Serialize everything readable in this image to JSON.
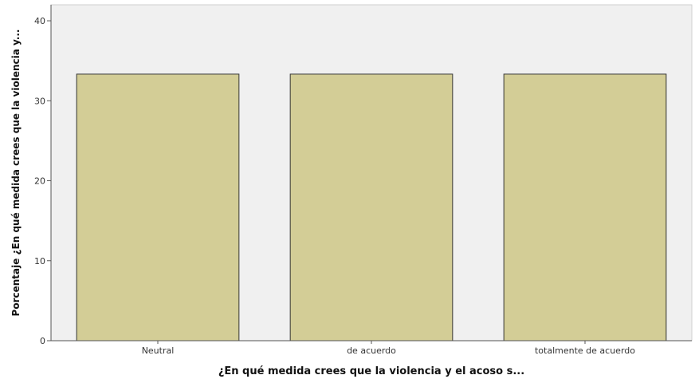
{
  "chart_data": {
    "type": "bar",
    "title": "",
    "categories": [
      "Neutral",
      "de acuerdo",
      "totalmente de acuerdo"
    ],
    "values": [
      33.33,
      33.33,
      33.33
    ],
    "xlabel": "¿En qué medida crees que la violencia y el acoso s...",
    "ylabel": "Porcentaje ¿En qué medida crees que la violencia y...",
    "ylim": [
      0,
      42
    ],
    "yticks": [
      0,
      10,
      20,
      30,
      40
    ],
    "grid": false,
    "colors": {
      "bar_fill": "#d3cd96",
      "bar_stroke": "#333333",
      "plot_background": "#f0f0f0",
      "axis": "#555555"
    }
  }
}
